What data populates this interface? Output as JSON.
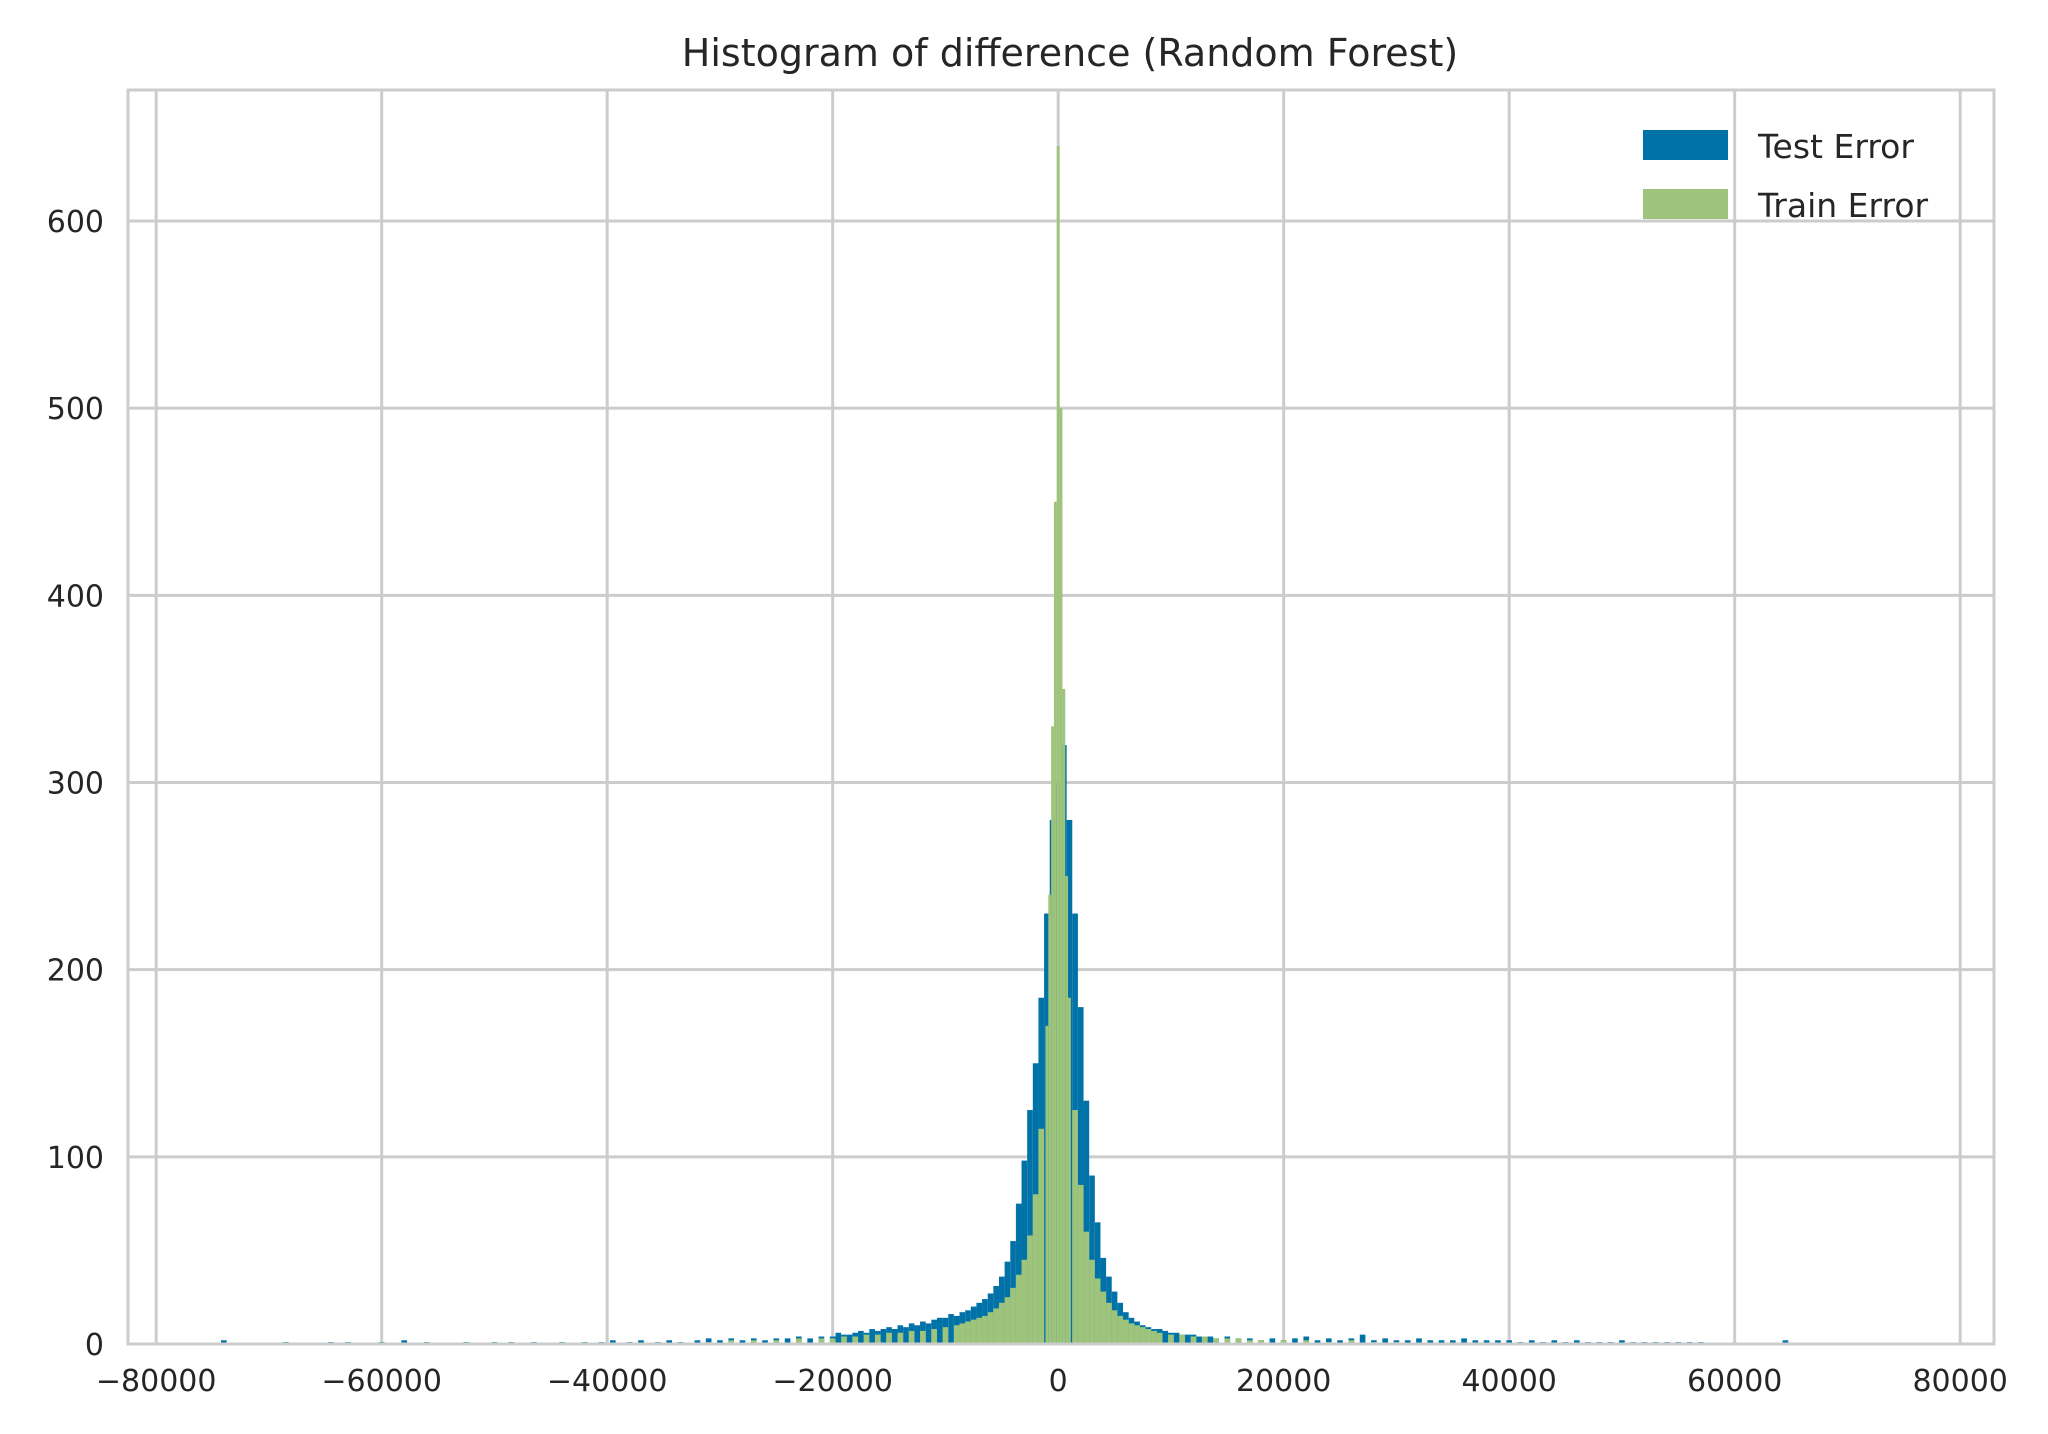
{
  "chart_data": {
    "type": "histogram",
    "title": "Histogram of difference (Random Forest)",
    "xlabel": "",
    "ylabel": "",
    "xlim": [
      -82500,
      83000
    ],
    "ylim": [
      0,
      670
    ],
    "xticks": [
      -80000,
      -60000,
      -40000,
      -20000,
      0,
      20000,
      40000,
      60000,
      80000
    ],
    "yticks": [
      0,
      100,
      200,
      300,
      400,
      500,
      600
    ],
    "grid": true,
    "legend_position": "top-right",
    "bin_width": 500,
    "series": [
      {
        "name": "Test Error",
        "color": "#0072A7",
        "bins": [
          [
            -74000,
            2
          ],
          [
            -68500,
            1
          ],
          [
            -64500,
            1
          ],
          [
            -63000,
            1
          ],
          [
            -60000,
            1
          ],
          [
            -58000,
            2
          ],
          [
            -56000,
            1
          ],
          [
            -52500,
            1
          ],
          [
            -50000,
            1
          ],
          [
            -48500,
            1
          ],
          [
            -46500,
            1
          ],
          [
            -44000,
            1
          ],
          [
            -42000,
            1
          ],
          [
            -40500,
            1
          ],
          [
            -39500,
            2
          ],
          [
            -38000,
            1
          ],
          [
            -37000,
            2
          ],
          [
            -35500,
            1
          ],
          [
            -34500,
            2
          ],
          [
            -33500,
            1
          ],
          [
            -32000,
            2
          ],
          [
            -31000,
            3
          ],
          [
            -30000,
            2
          ],
          [
            -29000,
            3
          ],
          [
            -28000,
            2
          ],
          [
            -27000,
            3
          ],
          [
            -26000,
            2
          ],
          [
            -25000,
            3
          ],
          [
            -24000,
            3
          ],
          [
            -23000,
            4
          ],
          [
            -22000,
            3
          ],
          [
            -21000,
            4
          ],
          [
            -20000,
            4
          ],
          [
            -19500,
            6
          ],
          [
            -19000,
            5
          ],
          [
            -18500,
            5
          ],
          [
            -18000,
            6
          ],
          [
            -17500,
            7
          ],
          [
            -17000,
            6
          ],
          [
            -16500,
            8
          ],
          [
            -16000,
            7
          ],
          [
            -15500,
            8
          ],
          [
            -15000,
            9
          ],
          [
            -14500,
            8
          ],
          [
            -14000,
            10
          ],
          [
            -13500,
            9
          ],
          [
            -13000,
            11
          ],
          [
            -12500,
            10
          ],
          [
            -12000,
            12
          ],
          [
            -11500,
            11
          ],
          [
            -11000,
            13
          ],
          [
            -10500,
            14
          ],
          [
            -10000,
            14
          ],
          [
            -9500,
            16
          ],
          [
            -9000,
            15
          ],
          [
            -8500,
            17
          ],
          [
            -8000,
            18
          ],
          [
            -7500,
            20
          ],
          [
            -7000,
            22
          ],
          [
            -6500,
            24
          ],
          [
            -6000,
            27
          ],
          [
            -5500,
            31
          ],
          [
            -5000,
            36
          ],
          [
            -4500,
            44
          ],
          [
            -4000,
            55
          ],
          [
            -3500,
            75
          ],
          [
            -3000,
            98
          ],
          [
            -2500,
            125
          ],
          [
            -2000,
            150
          ],
          [
            -1500,
            185
          ],
          [
            -1000,
            230
          ],
          [
            -500,
            280
          ],
          [
            0,
            300
          ],
          [
            500,
            320
          ],
          [
            1000,
            280
          ],
          [
            1500,
            230
          ],
          [
            2000,
            180
          ],
          [
            2500,
            130
          ],
          [
            3000,
            90
          ],
          [
            3500,
            65
          ],
          [
            4000,
            46
          ],
          [
            4500,
            36
          ],
          [
            5000,
            28
          ],
          [
            5500,
            22
          ],
          [
            6000,
            17
          ],
          [
            6500,
            14
          ],
          [
            7000,
            12
          ],
          [
            7500,
            10
          ],
          [
            8000,
            9
          ],
          [
            8500,
            8
          ],
          [
            9000,
            8
          ],
          [
            9500,
            7
          ],
          [
            10000,
            6
          ],
          [
            10500,
            6
          ],
          [
            11000,
            5
          ],
          [
            11500,
            5
          ],
          [
            12000,
            5
          ],
          [
            12500,
            4
          ],
          [
            13000,
            4
          ],
          [
            13500,
            4
          ],
          [
            14000,
            3
          ],
          [
            15000,
            4
          ],
          [
            16000,
            3
          ],
          [
            17000,
            3
          ],
          [
            18000,
            2
          ],
          [
            19000,
            3
          ],
          [
            20000,
            2
          ],
          [
            21000,
            3
          ],
          [
            22000,
            4
          ],
          [
            23000,
            2
          ],
          [
            24000,
            3
          ],
          [
            25000,
            2
          ],
          [
            26000,
            3
          ],
          [
            27000,
            5
          ],
          [
            28000,
            2
          ],
          [
            29000,
            3
          ],
          [
            30000,
            2
          ],
          [
            31000,
            2
          ],
          [
            32000,
            3
          ],
          [
            33000,
            2
          ],
          [
            34000,
            2
          ],
          [
            35000,
            2
          ],
          [
            36000,
            3
          ],
          [
            37000,
            2
          ],
          [
            38000,
            2
          ],
          [
            39000,
            2
          ],
          [
            40000,
            2
          ],
          [
            41000,
            1
          ],
          [
            42000,
            2
          ],
          [
            43000,
            1
          ],
          [
            44000,
            2
          ],
          [
            45000,
            1
          ],
          [
            46000,
            2
          ],
          [
            47000,
            1
          ],
          [
            48000,
            1
          ],
          [
            49000,
            1
          ],
          [
            50000,
            2
          ],
          [
            51000,
            1
          ],
          [
            52000,
            1
          ],
          [
            53000,
            1
          ],
          [
            54000,
            1
          ],
          [
            55000,
            1
          ],
          [
            56000,
            1
          ],
          [
            57000,
            1
          ],
          [
            64500,
            2
          ]
        ]
      },
      {
        "name": "Train Error",
        "color": "#9DC47A",
        "bins": [
          [
            -31000,
            1
          ],
          [
            -29000,
            2
          ],
          [
            -27000,
            2
          ],
          [
            -25000,
            2
          ],
          [
            -23000,
            3
          ],
          [
            -21000,
            3
          ],
          [
            -20000,
            3
          ],
          [
            -19000,
            4
          ],
          [
            -18000,
            4
          ],
          [
            -17000,
            5
          ],
          [
            -16000,
            5
          ],
          [
            -15000,
            6
          ],
          [
            -14000,
            6
          ],
          [
            -13000,
            7
          ],
          [
            -12000,
            7
          ],
          [
            -11000,
            8
          ],
          [
            -10000,
            9
          ],
          [
            -9000,
            10
          ],
          [
            -8500,
            11
          ],
          [
            -8000,
            12
          ],
          [
            -7500,
            13
          ],
          [
            -7000,
            14
          ],
          [
            -6500,
            15
          ],
          [
            -6000,
            17
          ],
          [
            -5500,
            19
          ],
          [
            -5000,
            22
          ],
          [
            -4500,
            25
          ],
          [
            -4000,
            30
          ],
          [
            -3500,
            37
          ],
          [
            -3000,
            45
          ],
          [
            -2500,
            58
          ],
          [
            -2000,
            80
          ],
          [
            -1500,
            115
          ],
          [
            -1000,
            170
          ],
          [
            -750,
            240
          ],
          [
            -500,
            330
          ],
          [
            -250,
            450
          ],
          [
            0,
            640
          ],
          [
            250,
            500
          ],
          [
            500,
            350
          ],
          [
            750,
            250
          ],
          [
            1000,
            185
          ],
          [
            1500,
            125
          ],
          [
            2000,
            85
          ],
          [
            2500,
            60
          ],
          [
            3000,
            45
          ],
          [
            3500,
            35
          ],
          [
            4000,
            28
          ],
          [
            4500,
            22
          ],
          [
            5000,
            18
          ],
          [
            5500,
            15
          ],
          [
            6000,
            13
          ],
          [
            6500,
            11
          ],
          [
            7000,
            10
          ],
          [
            7500,
            9
          ],
          [
            8000,
            8
          ],
          [
            8500,
            7
          ],
          [
            9000,
            6
          ],
          [
            10000,
            5
          ],
          [
            11000,
            5
          ],
          [
            12000,
            4
          ],
          [
            13000,
            4
          ],
          [
            14000,
            3
          ],
          [
            15000,
            3
          ],
          [
            16000,
            3
          ],
          [
            17000,
            2
          ],
          [
            18000,
            2
          ],
          [
            20000,
            2
          ],
          [
            22000,
            2
          ],
          [
            24000,
            1
          ],
          [
            26000,
            2
          ],
          [
            28000,
            1
          ],
          [
            30000,
            1
          ]
        ]
      }
    ]
  }
}
